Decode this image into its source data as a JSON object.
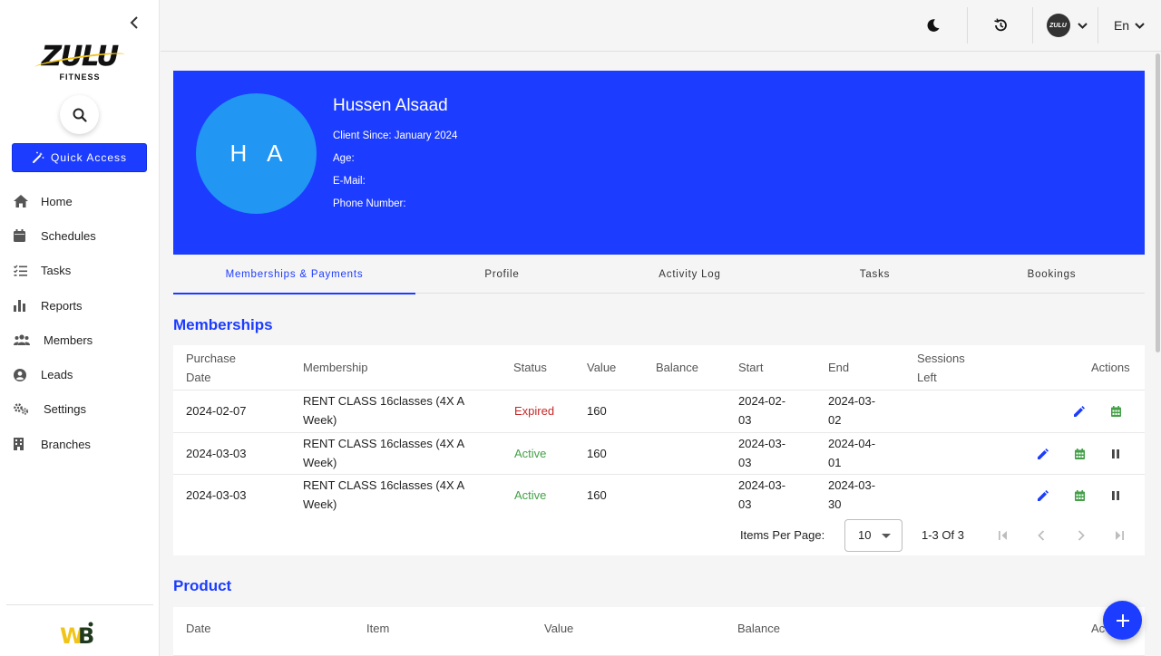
{
  "sidebar": {
    "logo": {
      "main": "ZULU",
      "sub": "FITNESS"
    },
    "quick_access_label": "Quick Access",
    "items": [
      {
        "label": "Home",
        "icon": "home-icon"
      },
      {
        "label": "Schedules",
        "icon": "calendar-icon"
      },
      {
        "label": "Tasks",
        "icon": "checklist-icon"
      },
      {
        "label": "Reports",
        "icon": "bar-chart-icon"
      },
      {
        "label": "Members",
        "icon": "people-icon"
      },
      {
        "label": "Leads",
        "icon": "account-circle-icon"
      },
      {
        "label": "Settings",
        "icon": "gears-icon"
      },
      {
        "label": "Branches",
        "icon": "building-icon"
      }
    ],
    "footer_mark": "WB"
  },
  "topbar": {
    "avatar_text": "ZULU",
    "language": "En"
  },
  "profile": {
    "initials": "H A",
    "name": "Hussen Alsaad",
    "client_since": "Client Since: January 2024",
    "age": "Age:",
    "email": "E-Mail:",
    "phone": "Phone Number:"
  },
  "tabs": [
    {
      "label": "Memberships & Payments",
      "active": true
    },
    {
      "label": "Profile",
      "active": false
    },
    {
      "label": "Activity Log",
      "active": false
    },
    {
      "label": "Tasks",
      "active": false
    },
    {
      "label": "Bookings",
      "active": false
    }
  ],
  "memberships": {
    "title": "Memberships",
    "headers": {
      "purchase_date": [
        "Purchase",
        "Date"
      ],
      "membership": "Membership",
      "status": "Status",
      "value": "Value",
      "balance": "Balance",
      "start": "Start",
      "end": "End",
      "sessions_left": [
        "Sessions",
        "Left"
      ],
      "actions": "Actions"
    },
    "rows": [
      {
        "purchase_date": "2024-02-07",
        "membership": [
          "RENT CLASS 16classes (4X A",
          "Week)"
        ],
        "status": "Expired",
        "value": "160",
        "balance": "",
        "start": [
          "2024-02-",
          "03"
        ],
        "end": [
          "2024-03-",
          "02"
        ],
        "sessions_left": ""
      },
      {
        "purchase_date": "2024-03-03",
        "membership": [
          "RENT CLASS 16classes (4X A",
          "Week)"
        ],
        "status": "Active",
        "value": "160",
        "balance": "",
        "start": [
          "2024-03-",
          "03"
        ],
        "end": [
          "2024-04-",
          "01"
        ],
        "sessions_left": ""
      },
      {
        "purchase_date": "2024-03-03",
        "membership": [
          "RENT CLASS 16classes (4X A",
          "Week)"
        ],
        "status": "Active",
        "value": "160",
        "balance": "",
        "start": [
          "2024-03-",
          "03"
        ],
        "end": [
          "2024-03-",
          "30"
        ],
        "sessions_left": ""
      }
    ],
    "pager": {
      "items_per_page_label": "Items Per Page:",
      "items_per_page": "10",
      "range": "1-3 Of 3"
    }
  },
  "product": {
    "title": "Product",
    "headers": {
      "date": "Date",
      "item": "Item",
      "value": "Value",
      "balance": "Balance",
      "actions": "Ac"
    }
  },
  "colors": {
    "primary": "#1c3cff",
    "avatar": "#2196f3",
    "expired": "#c62828",
    "active": "#43a047"
  }
}
